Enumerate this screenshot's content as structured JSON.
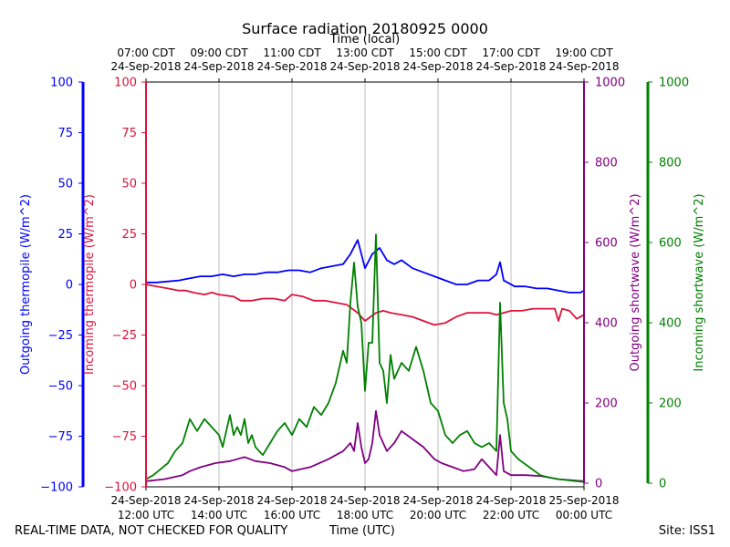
{
  "chart_data": {
    "type": "line",
    "title": "Surface radiation 20180925 0000",
    "xlabel_top": "Time (local)",
    "xlabel_bottom": "Time (UTC)",
    "x_range_utc_hours": [
      12,
      24
    ],
    "bottom_ticks": [
      {
        "hour": 12,
        "line1": "24-Sep-2018",
        "line2": "12:00 UTC"
      },
      {
        "hour": 14,
        "line1": "24-Sep-2018",
        "line2": "14:00 UTC"
      },
      {
        "hour": 16,
        "line1": "24-Sep-2018",
        "line2": "16:00 UTC"
      },
      {
        "hour": 18,
        "line1": "24-Sep-2018",
        "line2": "18:00 UTC"
      },
      {
        "hour": 20,
        "line1": "24-Sep-2018",
        "line2": "20:00 UTC"
      },
      {
        "hour": 22,
        "line1": "24-Sep-2018",
        "line2": "22:00 UTC"
      },
      {
        "hour": 24,
        "line1": "25-Sep-2018",
        "line2": "00:00 UTC"
      }
    ],
    "top_ticks": [
      {
        "hour": 12,
        "line1": "07:00 CDT",
        "line2": "24-Sep-2018"
      },
      {
        "hour": 14,
        "line1": "09:00 CDT",
        "line2": "24-Sep-2018"
      },
      {
        "hour": 16,
        "line1": "11:00 CDT",
        "line2": "24-Sep-2018"
      },
      {
        "hour": 18,
        "line1": "13:00 CDT",
        "line2": "24-Sep-2018"
      },
      {
        "hour": 20,
        "line1": "15:00 CDT",
        "line2": "24-Sep-2018"
      },
      {
        "hour": 22,
        "line1": "17:00 CDT",
        "line2": "24-Sep-2018"
      },
      {
        "hour": 24,
        "line1": "19:00 CDT",
        "line2": "24-Sep-2018"
      }
    ],
    "axes": [
      {
        "id": "out_thermo",
        "label": "Outgoing thermopile (W/m^2)",
        "color": "#0000ff",
        "ylim": [
          -100,
          100
        ],
        "ticks": [
          "100",
          "75",
          "50",
          "25",
          "0",
          "−25",
          "−50",
          "−75",
          "−100"
        ],
        "tick_values": [
          100,
          75,
          50,
          25,
          0,
          -25,
          -50,
          -75,
          -100
        ]
      },
      {
        "id": "in_thermo",
        "label": "Incoming thermopile (W/m^2)",
        "color": "#dc143c",
        "ylim": [
          -100,
          100
        ],
        "ticks": [
          "100",
          "75",
          "50",
          "25",
          "0",
          "−25",
          "−50",
          "−75",
          "−100"
        ],
        "tick_values": [
          100,
          75,
          50,
          25,
          0,
          -25,
          -50,
          -75,
          -100
        ]
      },
      {
        "id": "out_sw",
        "label": "Outgoing shortwave (W/m^2)",
        "color": "#800080",
        "ylim": [
          0,
          1000
        ],
        "ticks": [
          "1000",
          "800",
          "600",
          "400",
          "200",
          "0"
        ],
        "tick_values": [
          1000,
          800,
          600,
          400,
          200,
          0
        ]
      },
      {
        "id": "in_sw",
        "label": "Incoming shortwave (W/m^2)",
        "color": "#008000",
        "ylim": [
          0,
          1000
        ],
        "ticks": [
          "1000",
          "800",
          "600",
          "400",
          "200",
          "0"
        ],
        "tick_values": [
          1000,
          800,
          600,
          400,
          200,
          0
        ]
      }
    ],
    "series": [
      {
        "name": "Outgoing thermopile",
        "axis": "out_thermo",
        "color": "#0000ff",
        "x": [
          12.0,
          12.3,
          12.6,
          12.9,
          13.2,
          13.5,
          13.8,
          14.1,
          14.4,
          14.7,
          15.0,
          15.3,
          15.6,
          15.9,
          16.2,
          16.5,
          16.8,
          17.1,
          17.4,
          17.6,
          17.8,
          18.0,
          18.2,
          18.4,
          18.6,
          18.8,
          19.0,
          19.3,
          19.6,
          19.9,
          20.2,
          20.5,
          20.8,
          21.1,
          21.4,
          21.6,
          21.7,
          21.8,
          22.1,
          22.4,
          22.7,
          23.0,
          23.3,
          23.6,
          23.9,
          24.0
        ],
        "y": [
          1,
          1,
          1.5,
          2,
          3,
          4,
          4,
          5,
          4,
          5,
          5,
          6,
          6,
          7,
          7,
          6,
          8,
          9,
          10,
          15,
          22,
          8,
          15,
          18,
          12,
          10,
          12,
          8,
          6,
          4,
          2,
          0,
          0,
          2,
          2,
          5,
          11,
          2,
          -1,
          -1,
          -2,
          -2,
          -3,
          -4,
          -4,
          -3
        ]
      },
      {
        "name": "Incoming thermopile",
        "axis": "in_thermo",
        "color": "#dc143c",
        "x": [
          12.0,
          12.3,
          12.6,
          12.9,
          13.1,
          13.3,
          13.6,
          13.8,
          14.0,
          14.4,
          14.6,
          14.9,
          15.2,
          15.5,
          15.8,
          16.0,
          16.3,
          16.6,
          16.9,
          17.2,
          17.5,
          17.8,
          18.0,
          18.3,
          18.5,
          18.7,
          19.0,
          19.3,
          19.6,
          19.9,
          20.2,
          20.5,
          20.8,
          21.1,
          21.4,
          21.6,
          21.8,
          22.0,
          22.3,
          22.6,
          22.9,
          23.0,
          23.2,
          23.3,
          23.4,
          23.6,
          23.8,
          24.0
        ],
        "y": [
          0,
          -1,
          -2,
          -3,
          -3,
          -4,
          -5,
          -4,
          -5,
          -6,
          -8,
          -8,
          -7,
          -7,
          -8,
          -5,
          -6,
          -8,
          -8,
          -9,
          -10,
          -14,
          -18,
          -14,
          -13,
          -14,
          -15,
          -16,
          -18,
          -20,
          -19,
          -16,
          -14,
          -14,
          -14,
          -15,
          -14,
          -13,
          -13,
          -12,
          -12,
          -12,
          -12,
          -18,
          -12,
          -13,
          -17,
          -15
        ]
      },
      {
        "name": "Outgoing shortwave",
        "axis": "out_sw",
        "color": "#800080",
        "x": [
          12.0,
          12.5,
          13.0,
          13.2,
          13.5,
          13.9,
          14.3,
          14.7,
          15.0,
          15.4,
          15.8,
          16.0,
          16.5,
          17.0,
          17.4,
          17.6,
          17.7,
          17.8,
          17.9,
          18.0,
          18.1,
          18.2,
          18.3,
          18.4,
          18.6,
          18.8,
          19.0,
          19.3,
          19.6,
          19.9,
          20.1,
          20.4,
          20.7,
          21.0,
          21.2,
          21.4,
          21.6,
          21.7,
          21.8,
          22.0,
          22.4,
          22.8,
          23.0,
          23.3,
          23.6,
          24.0
        ],
        "y": [
          5,
          10,
          20,
          30,
          40,
          50,
          55,
          65,
          55,
          50,
          40,
          30,
          40,
          60,
          80,
          100,
          80,
          150,
          90,
          50,
          60,
          100,
          180,
          120,
          80,
          100,
          130,
          110,
          90,
          60,
          50,
          40,
          30,
          35,
          60,
          40,
          20,
          120,
          30,
          20,
          20,
          18,
          15,
          10,
          8,
          5
        ]
      },
      {
        "name": "Incoming shortwave",
        "axis": "in_sw",
        "color": "#008000",
        "x": [
          12.0,
          12.2,
          12.4,
          12.6,
          12.8,
          13.0,
          13.2,
          13.4,
          13.6,
          13.8,
          14.0,
          14.1,
          14.2,
          14.3,
          14.4,
          14.5,
          14.6,
          14.7,
          14.8,
          14.9,
          15.0,
          15.2,
          15.4,
          15.6,
          15.8,
          16.0,
          16.2,
          16.4,
          16.6,
          16.8,
          17.0,
          17.2,
          17.4,
          17.5,
          17.6,
          17.7,
          17.8,
          17.9,
          18.0,
          18.1,
          18.2,
          18.3,
          18.4,
          18.5,
          18.6,
          18.7,
          18.8,
          19.0,
          19.2,
          19.4,
          19.6,
          19.8,
          20.0,
          20.2,
          20.4,
          20.6,
          20.8,
          21.0,
          21.2,
          21.4,
          21.6,
          21.7,
          21.8,
          21.9,
          22.0,
          22.2,
          22.5,
          22.8,
          23.0,
          23.3,
          23.5,
          23.8,
          24.0
        ],
        "y": [
          10,
          20,
          35,
          50,
          80,
          100,
          160,
          130,
          160,
          140,
          120,
          90,
          130,
          170,
          120,
          140,
          120,
          160,
          100,
          120,
          90,
          70,
          100,
          130,
          150,
          120,
          160,
          140,
          190,
          170,
          200,
          250,
          330,
          300,
          450,
          550,
          440,
          400,
          230,
          350,
          350,
          620,
          300,
          280,
          200,
          320,
          260,
          300,
          280,
          340,
          280,
          200,
          180,
          120,
          100,
          120,
          130,
          100,
          90,
          100,
          80,
          450,
          200,
          160,
          80,
          60,
          40,
          20,
          15,
          10,
          8,
          5,
          3
        ]
      }
    ]
  },
  "footer": {
    "left": "REAL-TIME DATA, NOT CHECKED FOR QUALITY",
    "center": "Time (UTC)",
    "right": "Site: ISS1"
  }
}
